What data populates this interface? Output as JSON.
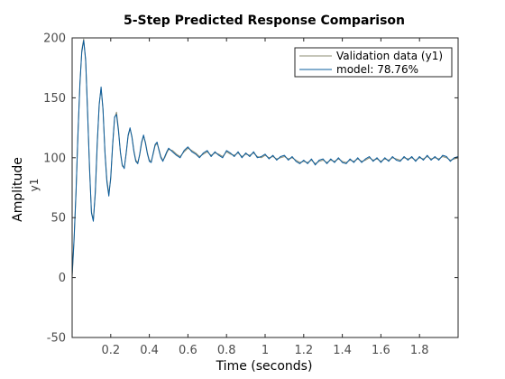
{
  "chart_data": {
    "type": "line",
    "title": "5-Step Predicted Response Comparison",
    "xlabel": "Time (seconds)",
    "ylabel": "Amplitude",
    "ylabel_sub": "y1",
    "xlim": [
      0,
      2
    ],
    "ylim": [
      -50,
      200
    ],
    "xticks": [
      0.2,
      0.4,
      0.6,
      0.8,
      1,
      1.2,
      1.4,
      1.6,
      1.8
    ],
    "xtick_labels": [
      "0.2",
      "0.4",
      "0.6",
      "0.8",
      "1",
      "1.2",
      "1.4",
      "1.6",
      "1.8"
    ],
    "yticks": [
      -50,
      0,
      50,
      100,
      150,
      200
    ],
    "ytick_labels": [
      "-50",
      "0",
      "50",
      "100",
      "150",
      "200"
    ],
    "grid": false,
    "legend_position": "top-right",
    "series": [
      {
        "name": "Validation data (y1)",
        "color": "#8c8c73",
        "x": [
          0,
          0.01,
          0.02,
          0.03,
          0.04,
          0.05,
          0.06,
          0.07,
          0.08,
          0.09,
          0.1,
          0.11,
          0.12,
          0.13,
          0.14,
          0.15,
          0.16,
          0.17,
          0.18,
          0.19,
          0.2,
          0.21,
          0.22,
          0.23,
          0.24,
          0.25,
          0.26,
          0.27,
          0.28,
          0.29,
          0.3,
          0.31,
          0.32,
          0.33,
          0.34,
          0.35,
          0.36,
          0.37,
          0.38,
          0.39,
          0.4,
          0.41,
          0.42,
          0.43,
          0.44,
          0.45,
          0.46,
          0.47,
          0.48,
          0.49,
          0.5,
          0.52,
          0.54,
          0.56,
          0.58,
          0.6,
          0.62,
          0.64,
          0.66,
          0.68,
          0.7,
          0.72,
          0.74,
          0.76,
          0.78,
          0.8,
          0.82,
          0.84,
          0.86,
          0.88,
          0.9,
          0.92,
          0.94,
          0.96,
          0.98,
          1,
          1.02,
          1.04,
          1.06,
          1.08,
          1.1,
          1.12,
          1.14,
          1.16,
          1.18,
          1.2,
          1.22,
          1.24,
          1.26,
          1.28,
          1.3,
          1.32,
          1.34,
          1.36,
          1.38,
          1.4,
          1.42,
          1.44,
          1.46,
          1.48,
          1.5,
          1.52,
          1.54,
          1.56,
          1.58,
          1.6,
          1.62,
          1.64,
          1.66,
          1.68,
          1.7,
          1.72,
          1.74,
          1.76,
          1.78,
          1.8,
          1.82,
          1.84,
          1.86,
          1.88,
          1.9,
          1.92,
          1.94,
          1.96,
          1.98,
          2
        ],
        "y": [
          0,
          30,
          70,
          120,
          160,
          190,
          199,
          180,
          140,
          90,
          55,
          48,
          70,
          110,
          145,
          158,
          140,
          105,
          82,
          70,
          82,
          110,
          133,
          138,
          124,
          104,
          93,
          92,
          103,
          118,
          124,
          118,
          106,
          98,
          96,
          102,
          112,
          118,
          113,
          104,
          98,
          97,
          103,
          110,
          112,
          107,
          101,
          98,
          100,
          104,
          107,
          106,
          103,
          101,
          105,
          108,
          106,
          104,
          101,
          103,
          105,
          102,
          104,
          103,
          101,
          105,
          103,
          102,
          104,
          101,
          103,
          102,
          104,
          101,
          100,
          102,
          100,
          101,
          99,
          100,
          101,
          99,
          100,
          98,
          96,
          97,
          96,
          98,
          95,
          97,
          98,
          96,
          98,
          97,
          99,
          97,
          96,
          98,
          97,
          99,
          97,
          98,
          100,
          98,
          99,
          97,
          99,
          98,
          100,
          99,
          98,
          100,
          99,
          100,
          98,
          100,
          99,
          101,
          99,
          100,
          99,
          101,
          100,
          98,
          99,
          100
        ]
      },
      {
        "name": "model: 78.76%",
        "color": "#0a5c9c",
        "x": [
          0,
          0.01,
          0.02,
          0.03,
          0.04,
          0.05,
          0.06,
          0.07,
          0.08,
          0.09,
          0.1,
          0.11,
          0.12,
          0.13,
          0.14,
          0.15,
          0.16,
          0.17,
          0.18,
          0.19,
          0.2,
          0.21,
          0.22,
          0.23,
          0.24,
          0.25,
          0.26,
          0.27,
          0.28,
          0.29,
          0.3,
          0.31,
          0.32,
          0.33,
          0.34,
          0.35,
          0.36,
          0.37,
          0.38,
          0.39,
          0.4,
          0.41,
          0.42,
          0.43,
          0.44,
          0.45,
          0.46,
          0.47,
          0.48,
          0.49,
          0.5,
          0.52,
          0.54,
          0.56,
          0.58,
          0.6,
          0.62,
          0.64,
          0.66,
          0.68,
          0.7,
          0.72,
          0.74,
          0.76,
          0.78,
          0.8,
          0.82,
          0.84,
          0.86,
          0.88,
          0.9,
          0.92,
          0.94,
          0.96,
          0.98,
          1,
          1.02,
          1.04,
          1.06,
          1.08,
          1.1,
          1.12,
          1.14,
          1.16,
          1.18,
          1.2,
          1.22,
          1.24,
          1.26,
          1.28,
          1.3,
          1.32,
          1.34,
          1.36,
          1.38,
          1.4,
          1.42,
          1.44,
          1.46,
          1.48,
          1.5,
          1.52,
          1.54,
          1.56,
          1.58,
          1.6,
          1.62,
          1.64,
          1.66,
          1.68,
          1.7,
          1.72,
          1.74,
          1.76,
          1.78,
          1.8,
          1.82,
          1.84,
          1.86,
          1.88,
          1.9,
          1.92,
          1.94,
          1.96,
          1.98,
          2
        ],
        "y": [
          2,
          32,
          72,
          118,
          162,
          188,
          198,
          182,
          138,
          92,
          54,
          47,
          72,
          112,
          144,
          159,
          141,
          104,
          80,
          68,
          84,
          111,
          134,
          136,
          122,
          105,
          94,
          91,
          104,
          119,
          125,
          117,
          105,
          97,
          95,
          103,
          113,
          119,
          112,
          103,
          97,
          96,
          104,
          111,
          113,
          106,
          100,
          97,
          101,
          105,
          108,
          105,
          102,
          100,
          106,
          109,
          105,
          103,
          100,
          104,
          106,
          101,
          105,
          102,
          100,
          106,
          104,
          101,
          105,
          100,
          104,
          101,
          105,
          100,
          101,
          103,
          99,
          102,
          98,
          101,
          102,
          98,
          101,
          97,
          95,
          98,
          95,
          99,
          94,
          98,
          99,
          95,
          99,
          96,
          100,
          96,
          95,
          99,
          96,
          100,
          96,
          99,
          101,
          97,
          100,
          96,
          100,
          97,
          101,
          98,
          97,
          101,
          98,
          101,
          97,
          101,
          98,
          102,
          98,
          101,
          98,
          102,
          101,
          97,
          100,
          101
        ]
      }
    ]
  }
}
